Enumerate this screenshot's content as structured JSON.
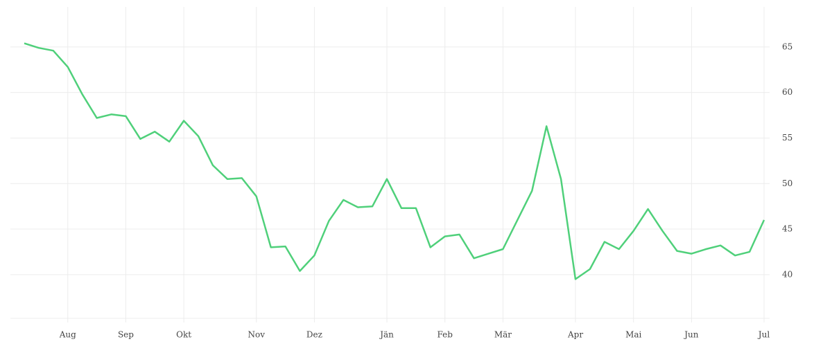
{
  "chart_data": {
    "type": "line",
    "categories": [
      null,
      null,
      null,
      "Aug",
      null,
      null,
      null,
      "Sep",
      null,
      null,
      null,
      "Okt",
      null,
      null,
      null,
      null,
      "Nov",
      null,
      null,
      null,
      "Dez",
      null,
      null,
      null,
      null,
      "Jän",
      null,
      null,
      null,
      "Feb",
      null,
      null,
      null,
      "Mär",
      null,
      null,
      null,
      null,
      "Apr",
      null,
      null,
      null,
      "Mai",
      null,
      null,
      null,
      "Jun",
      null,
      null,
      null,
      null,
      "Jul"
    ],
    "series": [
      {
        "color": "#4fd07a",
        "values": [
          65.4,
          64.9,
          64.6,
          62.8,
          59.8,
          57.2,
          57.6,
          57.4,
          54.9,
          55.7,
          54.6,
          56.9,
          55.2,
          52.0,
          50.5,
          50.6,
          48.6,
          43.0,
          43.1,
          40.4,
          42.1,
          45.9,
          48.2,
          47.4,
          47.5,
          50.5,
          47.3,
          47.3,
          43.0,
          44.2,
          44.4,
          41.8,
          42.3,
          42.8,
          46.0,
          49.2,
          56.3,
          50.5,
          39.5,
          40.6,
          43.6,
          42.8,
          44.8,
          47.2,
          44.8,
          42.6,
          42.3,
          42.8,
          43.2,
          42.1,
          42.5,
          46.0
        ]
      }
    ],
    "ylim": [
      35.2,
      69.4
    ],
    "yticks": [
      40,
      45,
      50,
      55,
      60,
      65
    ],
    "grid": true
  }
}
